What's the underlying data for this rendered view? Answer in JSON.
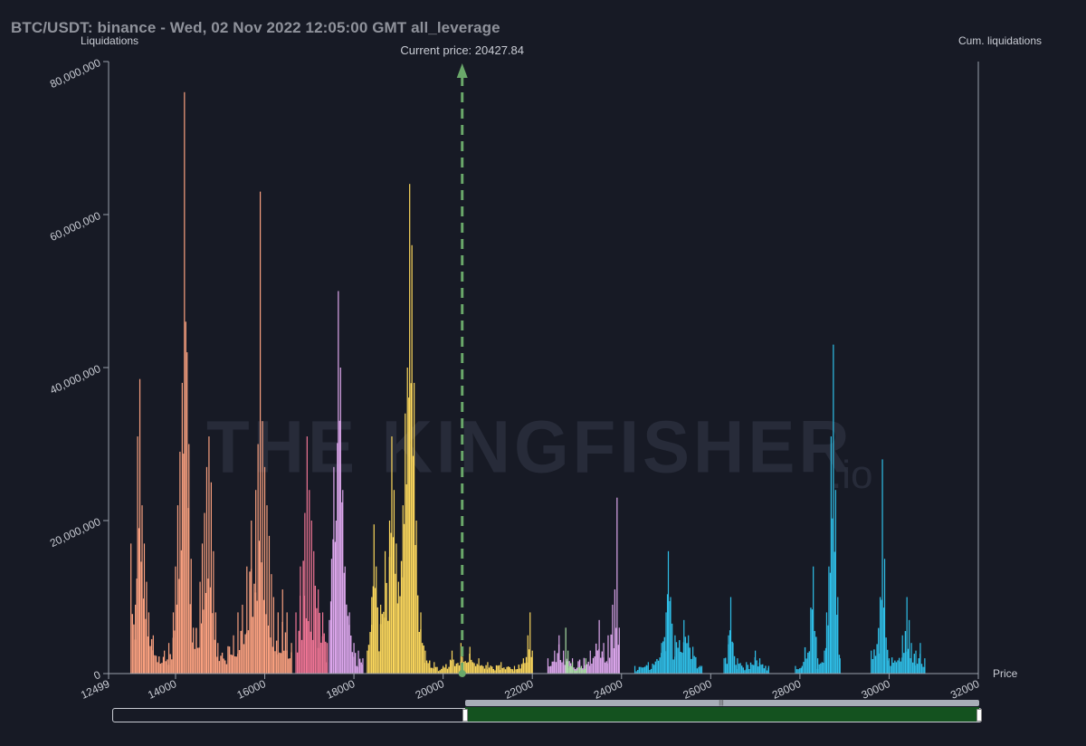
{
  "title": "BTC/USDT: binance - Wed, 02 Nov 2022 12:05:00 GMT all_leverage",
  "chart_data": {
    "type": "bar",
    "ylabel": "Liquidations",
    "y2label": "Cum. liquidations",
    "xlabel": "Price",
    "current_price_label": "Current price: 20427.84",
    "current_price": 20427.84,
    "xlim": [
      12499,
      32000
    ],
    "ylim": [
      0,
      80000000
    ],
    "x_ticks": [
      "12499",
      "14000",
      "16000",
      "18000",
      "20000",
      "22000",
      "24000",
      "26000",
      "28000",
      "30000",
      "32000"
    ],
    "x_tick_values": [
      12499,
      14000,
      16000,
      18000,
      20000,
      22000,
      24000,
      26000,
      28000,
      30000,
      32000
    ],
    "y_ticks": [
      "0",
      "20,000,000",
      "40,000,000",
      "60,000,000",
      "80,000,000"
    ],
    "y_tick_values": [
      0,
      20000000,
      40000000,
      60000000,
      80000000
    ],
    "grid": false,
    "colors": {
      "background": "#171a25",
      "salmon": "#f9a07f",
      "pink": "#f07595",
      "lavender": "#dca6ec",
      "yellow": "#fbd75c",
      "green": "#a7dca2",
      "blue": "#2fbfe8",
      "current_price_line": "#6aa86a"
    },
    "series": [
      {
        "color": "salmon",
        "peaks": [
          [
            13000,
            17000000
          ],
          [
            13100,
            9000000
          ],
          [
            13150,
            31000000
          ],
          [
            13200,
            38500000
          ],
          [
            13250,
            22000000
          ],
          [
            13300,
            17000000
          ],
          [
            13350,
            12000000
          ],
          [
            13400,
            8000000
          ],
          [
            13500,
            5000000
          ],
          [
            13750,
            3000000
          ],
          [
            13850,
            4000000
          ],
          [
            13950,
            8000000
          ],
          [
            14000,
            14000000
          ],
          [
            14050,
            22000000
          ],
          [
            14100,
            29000000
          ],
          [
            14150,
            38000000
          ],
          [
            14200,
            76000000
          ],
          [
            14230,
            46000000
          ],
          [
            14260,
            42000000
          ],
          [
            14300,
            30000000
          ],
          [
            14350,
            15000000
          ],
          [
            14400,
            6000000
          ],
          [
            14550,
            12000000
          ],
          [
            14600,
            17000000
          ],
          [
            14650,
            21000000
          ],
          [
            14700,
            27000000
          ],
          [
            14750,
            31000000
          ],
          [
            14800,
            25000000
          ],
          [
            14850,
            16000000
          ],
          [
            14900,
            8000000
          ],
          [
            14950,
            4000000
          ],
          [
            15300,
            5000000
          ],
          [
            15400,
            8000000
          ],
          [
            15500,
            9000000
          ],
          [
            15600,
            14000000
          ],
          [
            15700,
            20000000
          ],
          [
            15800,
            24000000
          ],
          [
            15850,
            30000000
          ],
          [
            15900,
            63000000
          ],
          [
            15950,
            33000000
          ],
          [
            16000,
            27000000
          ],
          [
            16050,
            22000000
          ],
          [
            16100,
            18000000
          ],
          [
            16150,
            13000000
          ],
          [
            16200,
            10000000
          ],
          [
            16300,
            8000000
          ],
          [
            16400,
            11000000
          ],
          [
            16500,
            8000000
          ],
          [
            16600,
            4000000
          ]
        ]
      },
      {
        "color": "pink",
        "peaks": [
          [
            16700,
            8000000
          ],
          [
            16800,
            14000000
          ],
          [
            16900,
            21000000
          ],
          [
            16950,
            31000000
          ],
          [
            17000,
            24000000
          ],
          [
            17050,
            20000000
          ],
          [
            17100,
            16000000
          ],
          [
            17200,
            11000000
          ],
          [
            17300,
            8000000
          ],
          [
            17400,
            4000000
          ]
        ]
      },
      {
        "color": "lavender",
        "peaks": [
          [
            17450,
            7000000
          ],
          [
            17500,
            15000000
          ],
          [
            17550,
            27000000
          ],
          [
            17600,
            20000000
          ],
          [
            17650,
            50000000
          ],
          [
            17700,
            40000000
          ],
          [
            17750,
            24000000
          ],
          [
            17800,
            14000000
          ],
          [
            17900,
            8000000
          ],
          [
            18000,
            4000000
          ],
          [
            18100,
            3000000
          ],
          [
            18200,
            2000000
          ]
        ]
      },
      {
        "color": "yellow",
        "peaks": [
          [
            18300,
            3000000
          ],
          [
            18400,
            10000000
          ],
          [
            18450,
            19500000
          ],
          [
            18500,
            14000000
          ],
          [
            18600,
            9000000
          ],
          [
            18700,
            16000000
          ],
          [
            18800,
            20000000
          ],
          [
            18850,
            31000000
          ],
          [
            18900,
            24000000
          ],
          [
            18950,
            17000000
          ],
          [
            19000,
            12000000
          ],
          [
            19100,
            22000000
          ],
          [
            19150,
            34000000
          ],
          [
            19200,
            40000000
          ],
          [
            19250,
            64000000
          ],
          [
            19300,
            56000000
          ],
          [
            19350,
            38000000
          ],
          [
            19400,
            20000000
          ],
          [
            19500,
            8000000
          ],
          [
            19600,
            3000000
          ],
          [
            19800,
            1500000
          ],
          [
            20000,
            1000000
          ],
          [
            20200,
            3000000
          ],
          [
            20400,
            4000000
          ],
          [
            20600,
            3500000
          ],
          [
            20800,
            2000000
          ],
          [
            21000,
            1500000
          ],
          [
            21300,
            1500000
          ],
          [
            21600,
            1000000
          ],
          [
            21800,
            2000000
          ],
          [
            21900,
            5000000
          ],
          [
            21950,
            8000000
          ],
          [
            22000,
            3000000
          ]
        ]
      },
      {
        "color": "lavender",
        "peaks": [
          [
            22350,
            2000000
          ],
          [
            22500,
            3000000
          ],
          [
            22600,
            5000000
          ],
          [
            22700,
            3000000
          ],
          [
            22900,
            2000000
          ],
          [
            23300,
            3000000
          ],
          [
            23500,
            7000000
          ],
          [
            23600,
            4000000
          ],
          [
            23700,
            5000000
          ],
          [
            23800,
            9000000
          ],
          [
            23850,
            11000000
          ],
          [
            23900,
            23000000
          ],
          [
            23950,
            6000000
          ]
        ]
      },
      {
        "color": "green",
        "peaks": [
          [
            22750,
            6000000
          ],
          [
            22800,
            3000000
          ],
          [
            22900,
            1500000
          ],
          [
            23100,
            1000000
          ],
          [
            23200,
            2000000
          ]
        ]
      },
      {
        "color": "blue",
        "peaks": [
          [
            24300,
            1000000
          ],
          [
            24600,
            1500000
          ],
          [
            24900,
            4000000
          ],
          [
            25000,
            8000000
          ],
          [
            25050,
            16000000
          ],
          [
            25100,
            10000000
          ],
          [
            25200,
            5000000
          ],
          [
            25400,
            7000000
          ],
          [
            25500,
            5000000
          ],
          [
            25600,
            3500000
          ],
          [
            25800,
            1000000
          ],
          [
            26300,
            2000000
          ],
          [
            26400,
            5000000
          ],
          [
            26450,
            10000000
          ],
          [
            26500,
            4000000
          ],
          [
            26600,
            2000000
          ],
          [
            26800,
            1500000
          ],
          [
            27000,
            3000000
          ],
          [
            27100,
            2000000
          ],
          [
            27300,
            1000000
          ],
          [
            27900,
            1000000
          ],
          [
            28050,
            1000000
          ],
          [
            28300,
            14000000
          ],
          [
            28400,
            2000000
          ],
          [
            28550,
            3000000
          ],
          [
            28600,
            8000000
          ],
          [
            28650,
            14000000
          ],
          [
            28700,
            31000000
          ],
          [
            28750,
            43000000
          ],
          [
            28800,
            24000000
          ],
          [
            28850,
            10000000
          ],
          [
            28900,
            2000000
          ],
          [
            29600,
            3000000
          ],
          [
            29800,
            10000000
          ],
          [
            29850,
            28000000
          ],
          [
            29900,
            15000000
          ],
          [
            30000,
            2000000
          ],
          [
            30300,
            5000000
          ],
          [
            30400,
            10000000
          ],
          [
            30450,
            7000000
          ],
          [
            30500,
            4000000
          ],
          [
            30600,
            3000000
          ],
          [
            30700,
            4000000
          ],
          [
            30800,
            2000000
          ]
        ]
      }
    ]
  },
  "watermark": {
    "text": "THE KINGFISHER",
    "suffix": ".io"
  }
}
